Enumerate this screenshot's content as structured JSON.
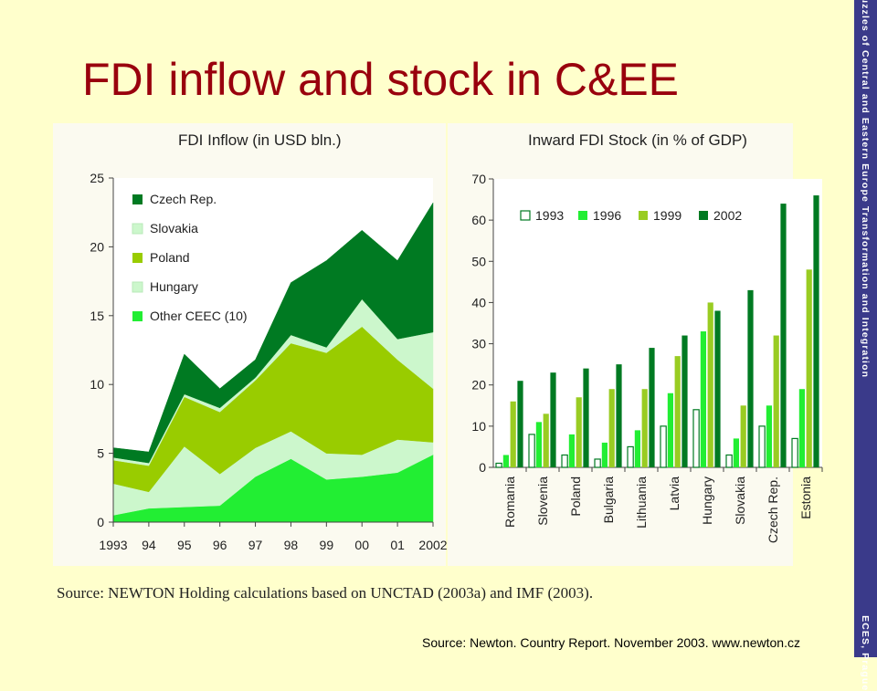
{
  "slide": {
    "title": "FDI inflow and stock in C&EE",
    "side_text_top": "The Puzzles of Central and Eastern Europe Transformation and Integration",
    "side_text_bottom": "ECES, Prague",
    "footer_source": "Source: Newton. Country Report. November 2003. www.newton.cz",
    "source_note": "Source: NEWTON Holding calculations based on UNCTAD (2003a) and IMF (2003).",
    "colors": {
      "background": "#ffffcc",
      "title": "#99000d",
      "side_strip": "#3a3a8a"
    }
  },
  "chart_data": [
    {
      "type": "area",
      "stacked": true,
      "title": "FDI Inflow (in USD bln.)",
      "x": [
        "1993",
        "94",
        "95",
        "96",
        "97",
        "98",
        "99",
        "00",
        "01",
        "2002"
      ],
      "ylim": [
        0,
        25
      ],
      "yticks": [
        0,
        5,
        10,
        15,
        20,
        25
      ],
      "legend_position": "top-left",
      "series": [
        {
          "name": "Other CEEC (10)",
          "color": "#22ee33",
          "values": [
            0.5,
            1.0,
            1.1,
            1.2,
            3.3,
            4.6,
            3.1,
            3.3,
            3.6,
            4.9
          ]
        },
        {
          "name": "Hungary",
          "color": "#ccf7cc",
          "values": [
            2.3,
            1.2,
            4.4,
            2.3,
            2.1,
            2.0,
            1.9,
            1.6,
            2.4,
            0.9
          ]
        },
        {
          "name": "Poland",
          "color": "#99cc00",
          "values": [
            1.7,
            1.9,
            3.6,
            4.5,
            4.9,
            6.4,
            7.3,
            9.3,
            5.8,
            3.9
          ]
        },
        {
          "name": "Slovakia",
          "color": "#ccf7cc",
          "values": [
            0.2,
            0.2,
            0.2,
            0.3,
            0.2,
            0.6,
            0.4,
            2.0,
            1.5,
            4.1
          ]
        },
        {
          "name": "Czech Rep.",
          "color": "#007a22",
          "values": [
            0.7,
            0.8,
            2.9,
            1.4,
            1.3,
            3.8,
            6.3,
            5.0,
            5.7,
            9.4
          ]
        }
      ]
    },
    {
      "type": "bar",
      "title": "Inward FDI Stock (in % of GDP)",
      "categories": [
        "Romania",
        "Slovenia",
        "Poland",
        "Bulgaria",
        "Lithuania",
        "Latvia",
        "Hungary",
        "Slovakia",
        "Czech Rep.",
        "Estonia"
      ],
      "ylim": [
        0,
        70
      ],
      "yticks": [
        0,
        10,
        20,
        30,
        40,
        50,
        60,
        70
      ],
      "legend_position": "top",
      "series": [
        {
          "name": "1993",
          "color": "#ffffff",
          "values": [
            1,
            8,
            3,
            2,
            5,
            10,
            14,
            3,
            10,
            7
          ]
        },
        {
          "name": "1996",
          "color": "#22ee33",
          "values": [
            3,
            11,
            8,
            6,
            9,
            18,
            33,
            7,
            15,
            19
          ]
        },
        {
          "name": "1999",
          "color": "#99cc22",
          "values": [
            16,
            13,
            17,
            19,
            19,
            27,
            40,
            15,
            32,
            48
          ]
        },
        {
          "name": "2002",
          "color": "#007a22",
          "values": [
            21,
            23,
            24,
            25,
            29,
            32,
            38,
            43,
            64,
            66
          ]
        }
      ]
    }
  ]
}
